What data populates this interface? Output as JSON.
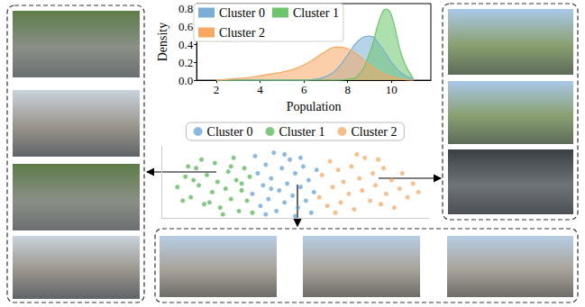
{
  "chart_data": [
    {
      "type": "area",
      "xlabel": "Population",
      "ylabel": "Density",
      "x": [
        2,
        2.5,
        3,
        3.5,
        4,
        4.5,
        5,
        5.5,
        6,
        6.5,
        7,
        7.5,
        8,
        8.5,
        9,
        9.5,
        9.75,
        10,
        10.5,
        11
      ],
      "series": [
        {
          "name": "Cluster 0",
          "color": "#7aaed6",
          "values": [
            0,
            0,
            0,
            0,
            0,
            0,
            0,
            0,
            0,
            0.01,
            0.04,
            0.12,
            0.28,
            0.44,
            0.49,
            0.38,
            0.29,
            0.2,
            0.07,
            0.01
          ]
        },
        {
          "name": "Cluster 1",
          "color": "#6cc46c",
          "values": [
            0,
            0,
            0,
            0,
            0,
            0,
            0,
            0,
            0,
            0,
            0,
            0,
            0.01,
            0.06,
            0.3,
            0.7,
            0.79,
            0.72,
            0.25,
            0.02
          ]
        },
        {
          "name": "Cluster 2",
          "color": "#f6a862",
          "values": [
            0,
            0.01,
            0.02,
            0.03,
            0.05,
            0.07,
            0.09,
            0.12,
            0.17,
            0.24,
            0.32,
            0.37,
            0.35,
            0.27,
            0.17,
            0.09,
            0.06,
            0.04,
            0.01,
            0
          ]
        }
      ],
      "xlim": [
        1.1,
        11.8
      ],
      "xticks": [
        2,
        4,
        6,
        8,
        10
      ],
      "ylim": [
        0,
        0.85
      ],
      "yticks": [
        {
          "value": 0,
          "label": "0.0"
        },
        {
          "value": 0.2,
          "label": "0.2"
        },
        {
          "value": 0.4,
          "label": "0.4"
        },
        {
          "value": 0.6,
          "label": "0.6"
        },
        {
          "value": 0.8,
          "label": "0.8"
        }
      ],
      "legend": "upper left",
      "grid": false
    },
    {
      "type": "scatter",
      "series": [
        {
          "name": "Cluster 0",
          "color": "#5b9bd5",
          "values": [
            [
              3.4,
              1.4
            ],
            [
              3.5,
              3.6
            ],
            [
              3.6,
              2.6
            ],
            [
              3.7,
              0.7
            ],
            [
              3.8,
              1.9
            ],
            [
              3.9,
              3.1
            ],
            [
              4.0,
              1.1
            ],
            [
              4.1,
              2.3
            ],
            [
              4.2,
              3.8
            ],
            [
              4.3,
              0.4
            ],
            [
              4.4,
              1.6
            ],
            [
              4.5,
              2.9
            ],
            [
              4.6,
              0.9
            ],
            [
              4.7,
              2.0
            ],
            [
              4.8,
              3.4
            ],
            [
              4.9,
              1.3
            ],
            [
              5.0,
              2.6
            ],
            [
              5.1,
              0.6
            ],
            [
              5.2,
              1.8
            ],
            [
              5.3,
              3.0
            ],
            [
              5.4,
              1.0
            ],
            [
              5.5,
              2.2
            ],
            [
              5.6,
              0.3
            ],
            [
              5.7,
              1.5
            ],
            [
              5.8,
              2.8
            ],
            [
              3.9,
              0.2
            ],
            [
              4.6,
              3.7
            ],
            [
              5.2,
              3.5
            ],
            [
              4.1,
              1.7
            ],
            [
              5.0,
              0.1
            ]
          ]
        },
        {
          "name": "Cluster 1",
          "color": "#4cb04c",
          "values": [
            [
              0.6,
              1.8
            ],
            [
              0.9,
              2.4
            ],
            [
              1.1,
              1.2
            ],
            [
              1.3,
              2.9
            ],
            [
              1.4,
              1.9
            ],
            [
              1.6,
              0.8
            ],
            [
              1.7,
              2.5
            ],
            [
              1.9,
              1.5
            ],
            [
              2.0,
              3.2
            ],
            [
              2.1,
              2.1
            ],
            [
              2.2,
              0.6
            ],
            [
              2.4,
              1.7
            ],
            [
              2.5,
              2.7
            ],
            [
              2.6,
              1.1
            ],
            [
              2.7,
              3.5
            ],
            [
              2.8,
              2.2
            ],
            [
              2.9,
              0.4
            ],
            [
              3.0,
              1.6
            ],
            [
              3.1,
              2.9
            ],
            [
              3.2,
              1.0
            ],
            [
              3.3,
              2.4
            ],
            [
              3.4,
              0.3
            ],
            [
              1.0,
              3.0
            ],
            [
              1.5,
              3.4
            ],
            [
              2.3,
              0.2
            ],
            [
              0.8,
              1.0
            ],
            [
              1.8,
              0.9
            ],
            [
              2.6,
              3.0
            ],
            [
              3.0,
              2.0
            ],
            [
              1.2,
              2.2
            ]
          ]
        },
        {
          "name": "Cluster 2",
          "color": "#f5a35a",
          "values": [
            [
              5.9,
              1.2
            ],
            [
              6.0,
              2.5
            ],
            [
              6.2,
              0.7
            ],
            [
              6.3,
              3.3
            ],
            [
              6.4,
              1.8
            ],
            [
              6.6,
              2.8
            ],
            [
              6.7,
              0.9
            ],
            [
              6.8,
              2.1
            ],
            [
              7.0,
              1.4
            ],
            [
              7.1,
              3.0
            ],
            [
              7.2,
              0.5
            ],
            [
              7.4,
              2.3
            ],
            [
              7.5,
              1.6
            ],
            [
              7.6,
              3.5
            ],
            [
              7.8,
              1.0
            ],
            [
              7.9,
              2.6
            ],
            [
              8.0,
              1.9
            ],
            [
              8.2,
              0.8
            ],
            [
              8.3,
              2.9
            ],
            [
              8.4,
              1.4
            ],
            [
              8.6,
              2.2
            ],
            [
              8.7,
              0.6
            ],
            [
              8.9,
              1.7
            ],
            [
              9.0,
              2.6
            ],
            [
              9.2,
              1.2
            ],
            [
              9.4,
              2.0
            ],
            [
              9.6,
              1.5
            ],
            [
              6.5,
              0.3
            ],
            [
              7.3,
              3.7
            ],
            [
              8.1,
              3.4
            ]
          ]
        }
      ],
      "xlim": [
        0,
        10
      ],
      "ylim": [
        0,
        4.2
      ],
      "tick_labels": false,
      "legend": "upper center",
      "grid": false
    }
  ]
}
